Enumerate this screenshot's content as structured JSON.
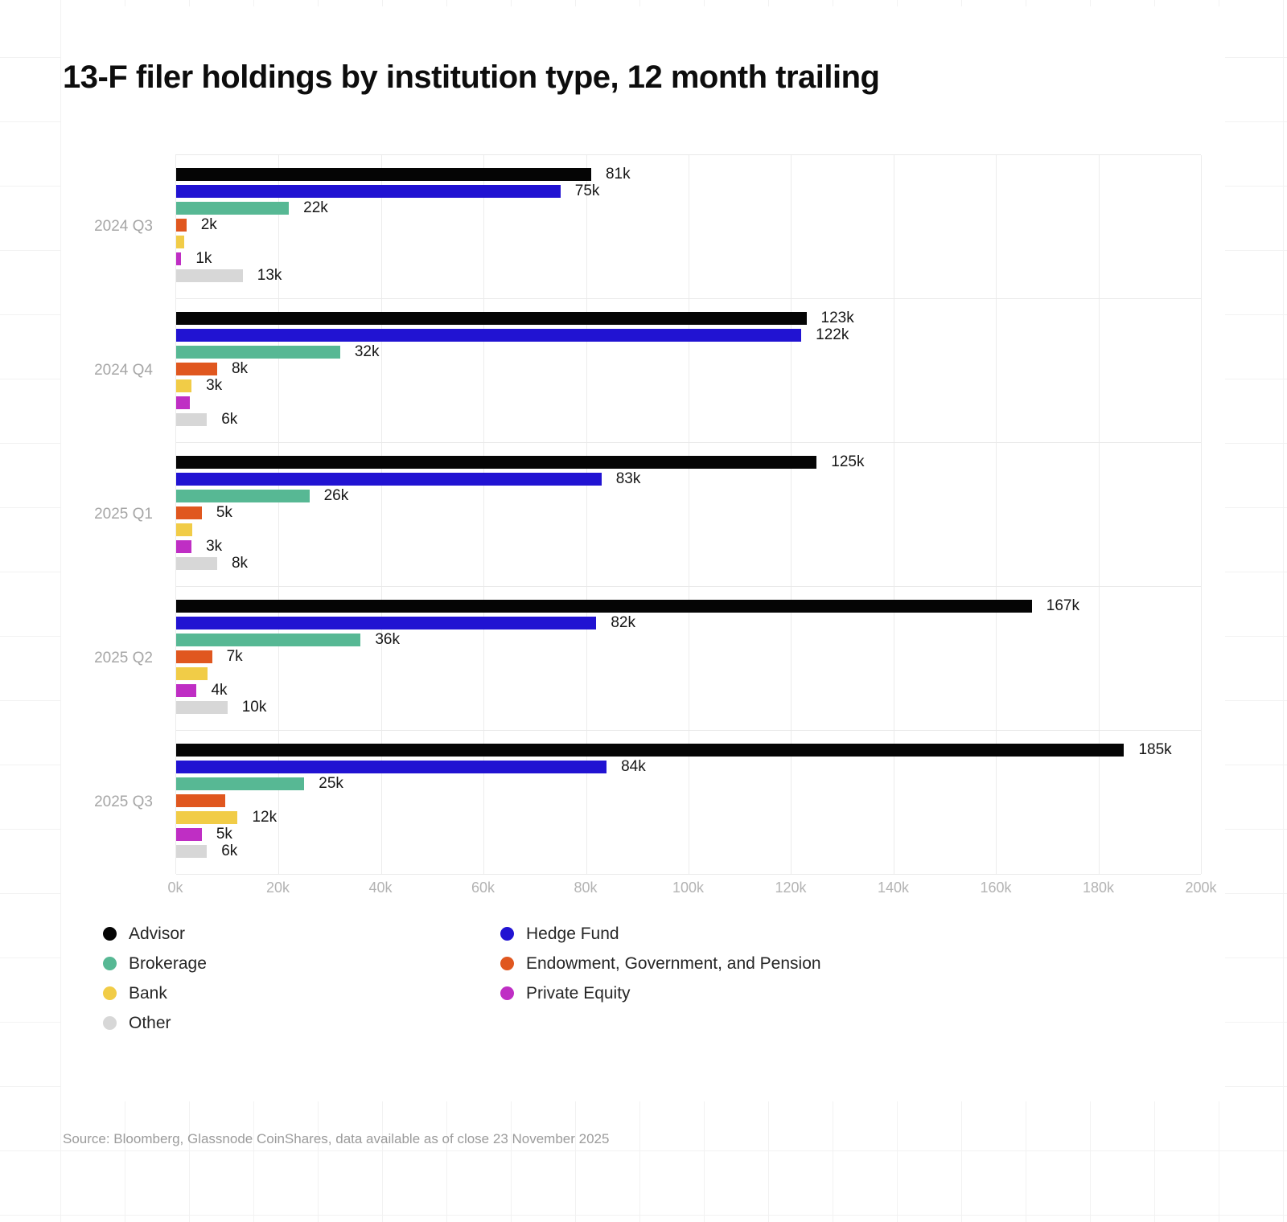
{
  "title": "13-F filer holdings by institution type, 12 month trailing",
  "source": "Source: Bloomberg, Glassnode CoinShares, data available as of close 23 November 2025",
  "chart_data": {
    "type": "bar",
    "orientation": "horizontal",
    "title": "13-F filer holdings by institution type, 12 month trailing",
    "value_unit": "thousands",
    "xlim": [
      0,
      200
    ],
    "grid": true,
    "x_ticks": [
      "0k",
      "20k",
      "40k",
      "60k",
      "80k",
      "100k",
      "120k",
      "140k",
      "160k",
      "180k",
      "200k"
    ],
    "categories": [
      "2024 Q3",
      "2024 Q4",
      "2025 Q1",
      "2025 Q2",
      "2025 Q3"
    ],
    "series": [
      {
        "name": "Advisor",
        "color": "#050505",
        "values": [
          81,
          123,
          125,
          167,
          185
        ],
        "labels": [
          "81k",
          "123k",
          "125k",
          "167k",
          "185k"
        ]
      },
      {
        "name": "Hedge Fund",
        "color": "#2113d2",
        "values": [
          75,
          122,
          83,
          82,
          84
        ],
        "labels": [
          "75k",
          "122k",
          "83k",
          "82k",
          "84k"
        ]
      },
      {
        "name": "Brokerage",
        "color": "#57b894",
        "values": [
          22,
          32,
          26,
          36,
          25
        ],
        "labels": [
          "22k",
          "32k",
          "26k",
          "36k",
          "25k"
        ]
      },
      {
        "name": "Endowment, Government, and Pension",
        "color": "#e0571f",
        "values": [
          2,
          8,
          5,
          7,
          9.5
        ],
        "labels": [
          "2k",
          "8k",
          "5k",
          "7k",
          ""
        ]
      },
      {
        "name": "Bank",
        "color": "#f1cc47",
        "values": [
          1.5,
          3,
          3.1,
          6.1,
          12
        ],
        "labels": [
          "",
          "3k",
          "",
          "",
          "12k"
        ]
      },
      {
        "name": "Private Equity",
        "color": "#bf2ec4",
        "values": [
          1,
          2.6,
          3,
          4,
          5
        ],
        "labels": [
          "1k",
          "",
          "3k",
          "4k",
          "5k"
        ]
      },
      {
        "name": "Other",
        "color": "#d7d7d7",
        "values": [
          13,
          6,
          8,
          10,
          6
        ],
        "labels": [
          "13k",
          "6k",
          "8k",
          "10k",
          "6k"
        ]
      }
    ],
    "legend_position": "bottom",
    "legend_columns": [
      [
        0,
        2,
        4,
        6
      ],
      [
        1,
        3,
        5
      ]
    ]
  }
}
